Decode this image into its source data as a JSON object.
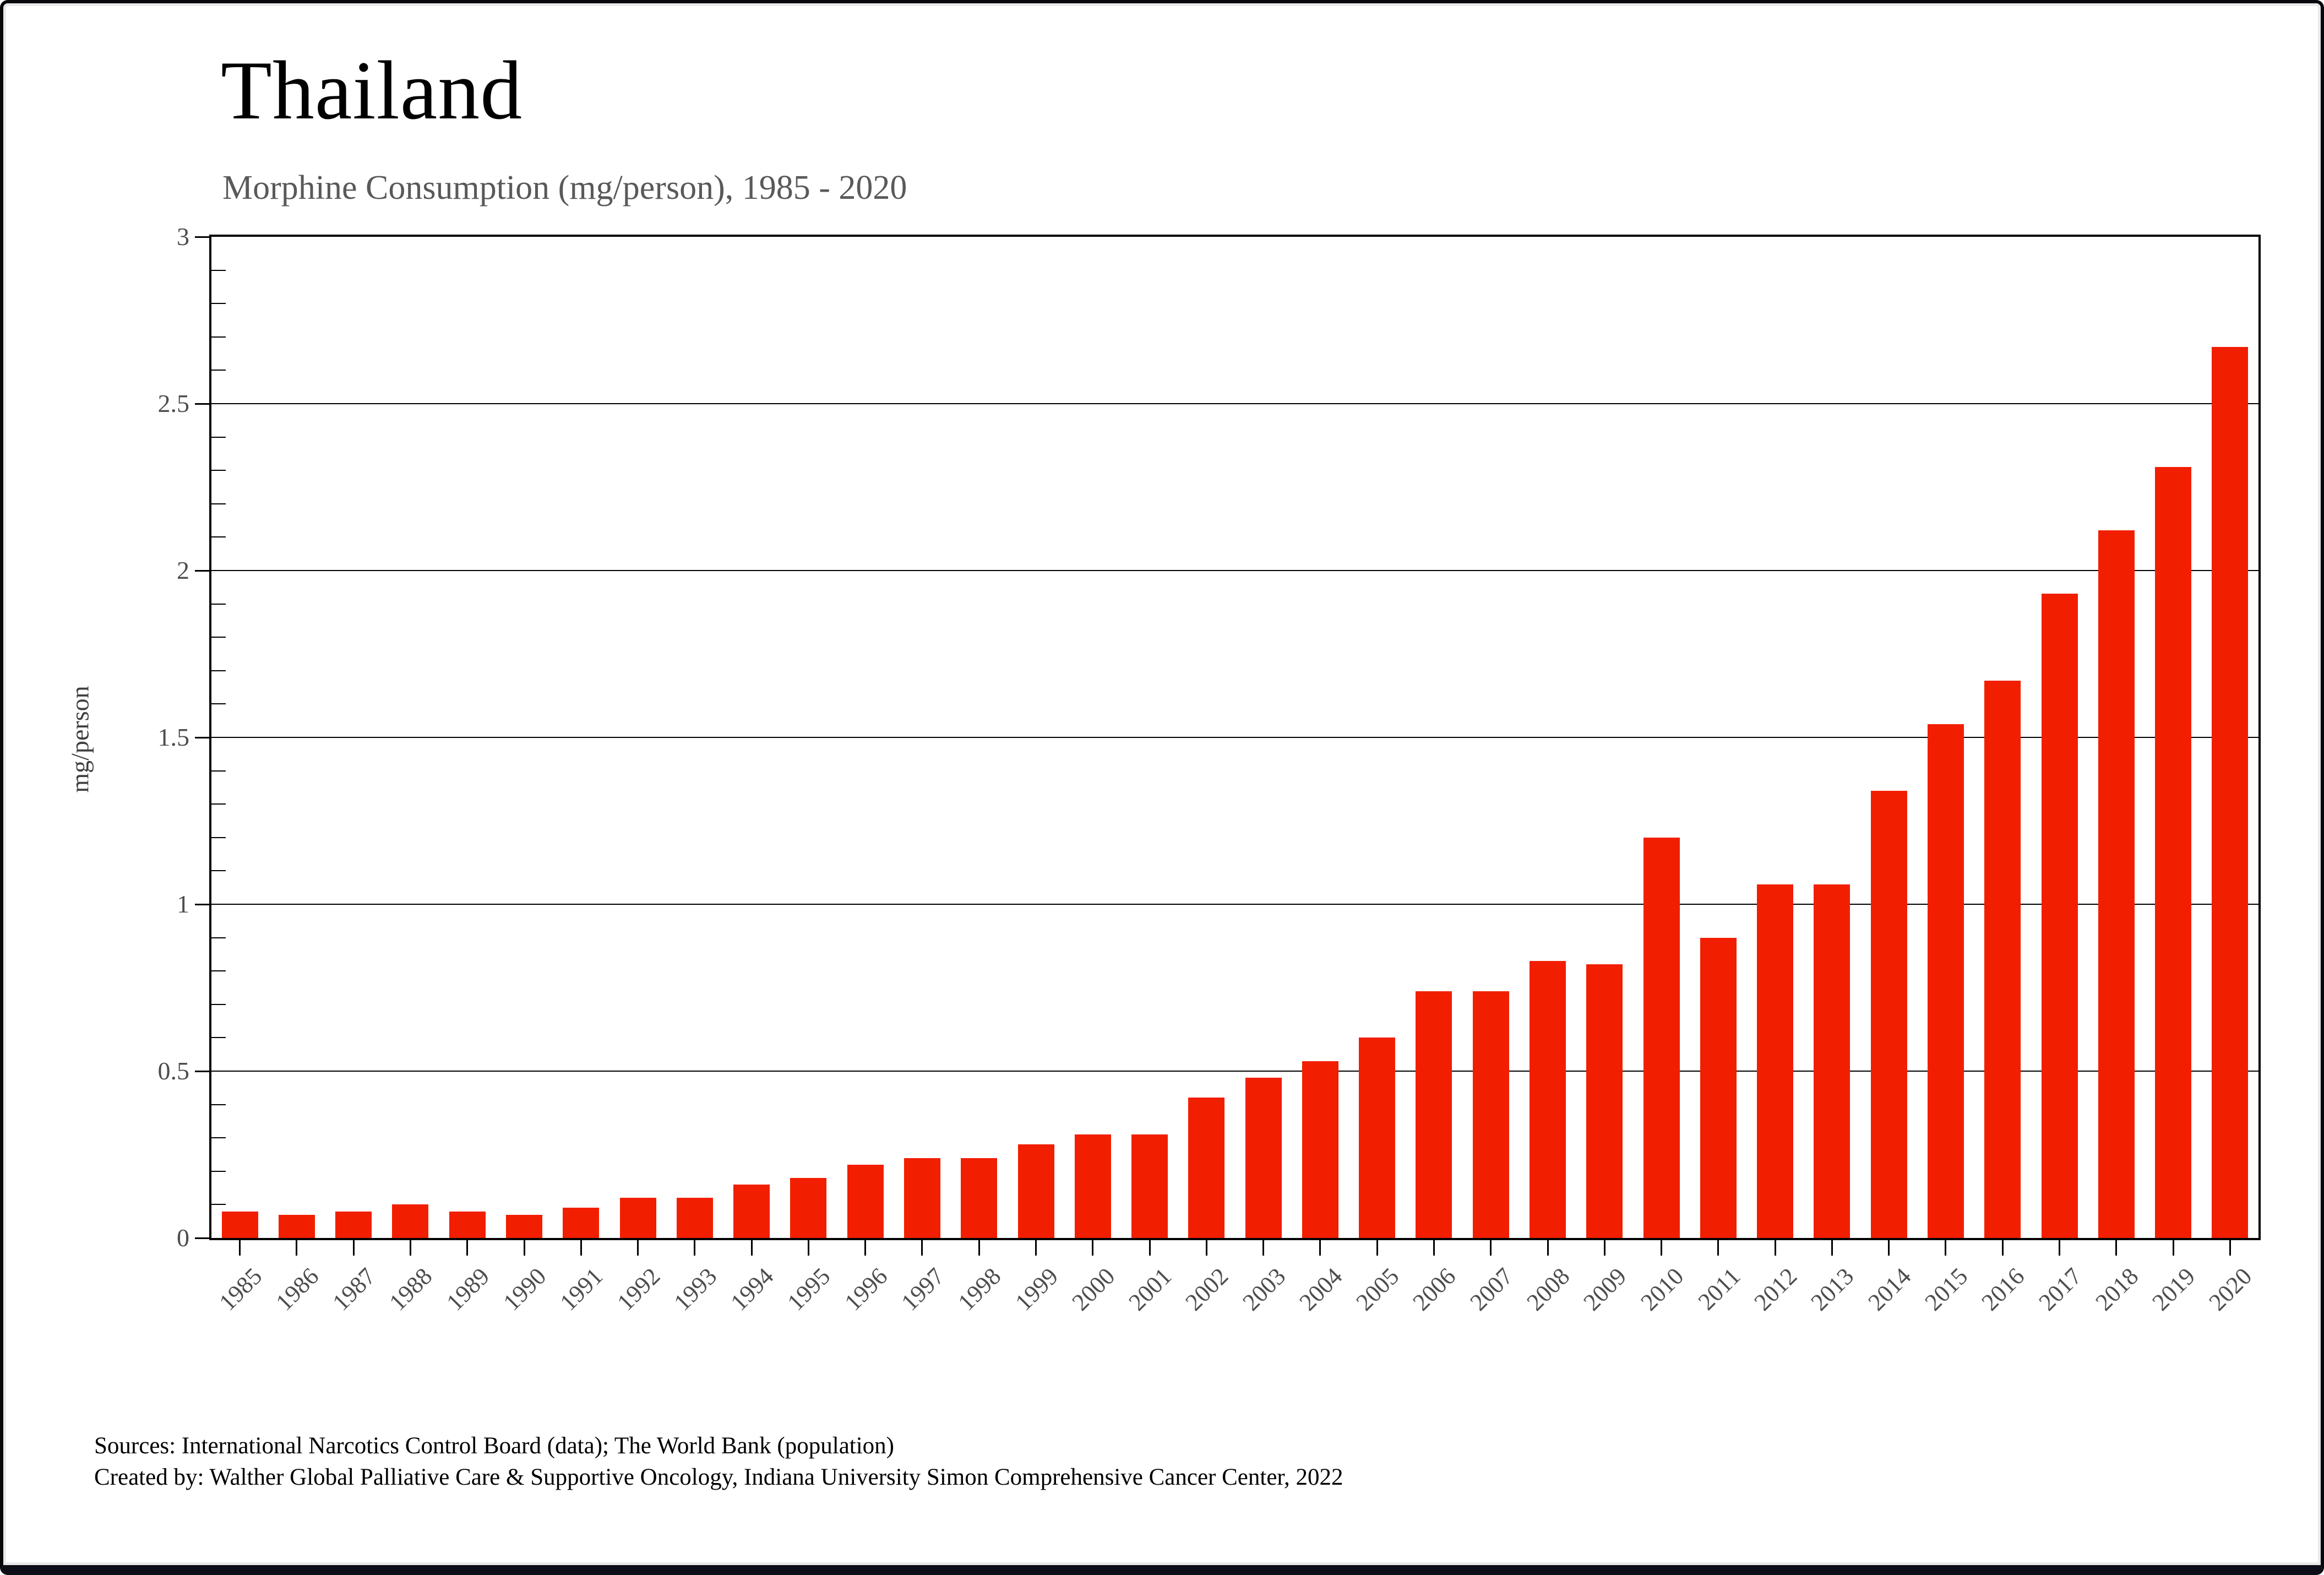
{
  "title": "Thailand",
  "subtitle": "Morphine Consumption (mg/person), 1985 - 2020",
  "ylabel": "mg/person",
  "footer": {
    "line1": "Sources: International Narcotics Control Board (data); The World Bank (population)",
    "line2": "Created by: Walther  Global Palliative Care & Supportive Oncology, Indiana University Simon Comprehensive Cancer Center, 2022"
  },
  "colors": {
    "bar": "#f21e00",
    "subtitle_text": "#595959",
    "tick_text": "#4d4d4d",
    "axis": "#000000",
    "frame_bottom": "#0d0d18"
  },
  "chart_data": {
    "type": "bar",
    "title": "Thailand",
    "subtitle": "Morphine Consumption (mg/person), 1985 - 2020",
    "xlabel": "",
    "ylabel": "mg/person",
    "ylim": [
      0,
      3
    ],
    "ytick_step": 0.5,
    "ytick_labels": [
      "0",
      "0.5",
      "1",
      "1.5",
      "2",
      "2.5",
      "3"
    ],
    "minor_tick_step": 0.1,
    "grid": "horizontal-major",
    "legend": "none",
    "bar_color": "#f21e00",
    "categories": [
      "1985",
      "1986",
      "1987",
      "1988",
      "1989",
      "1990",
      "1991",
      "1992",
      "1993",
      "1994",
      "1995",
      "1996",
      "1997",
      "1998",
      "1999",
      "2000",
      "2001",
      "2002",
      "2003",
      "2004",
      "2005",
      "2006",
      "2007",
      "2008",
      "2009",
      "2010",
      "2011",
      "2012",
      "2013",
      "2014",
      "2015",
      "2016",
      "2017",
      "2018",
      "2019",
      "2020"
    ],
    "values": [
      0.08,
      0.07,
      0.08,
      0.1,
      0.08,
      0.07,
      0.09,
      0.12,
      0.12,
      0.16,
      0.18,
      0.22,
      0.24,
      0.24,
      0.28,
      0.31,
      0.31,
      0.42,
      0.48,
      0.53,
      0.6,
      0.74,
      0.74,
      0.83,
      0.82,
      1.2,
      0.9,
      1.06,
      1.06,
      1.34,
      1.54,
      1.67,
      1.93,
      2.12,
      2.31,
      2.67
    ]
  }
}
